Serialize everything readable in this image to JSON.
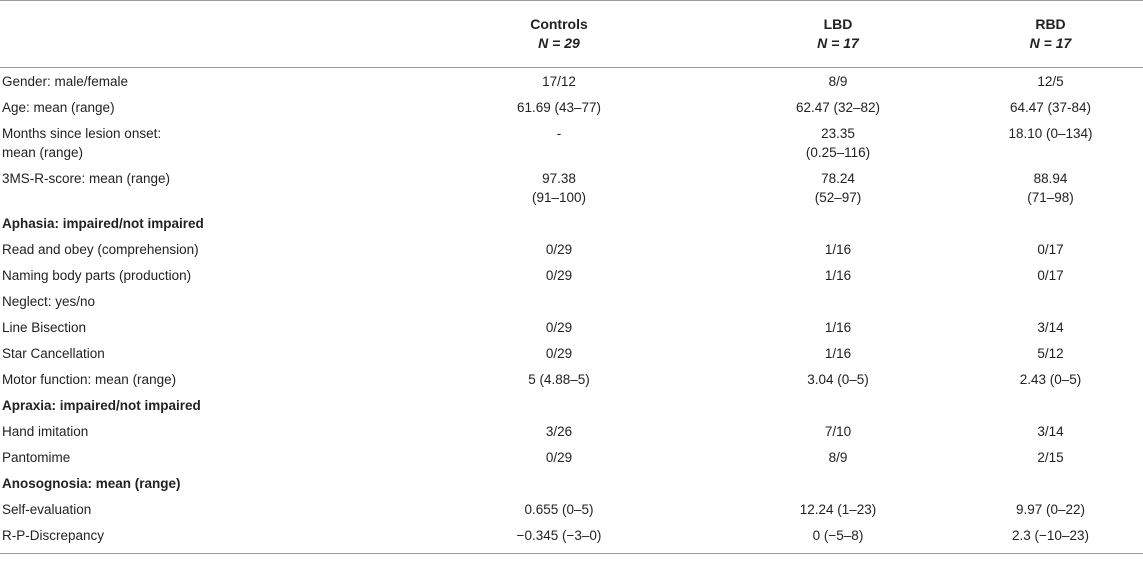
{
  "header": {
    "columns": [
      {
        "name": "Controls",
        "n": "N = 29"
      },
      {
        "name": "LBD",
        "n": "N = 17"
      },
      {
        "name": "RBD",
        "n": "N = 17"
      }
    ]
  },
  "rows": [
    {
      "label": "Gender: male/female",
      "values": [
        "17/12",
        "8/9",
        "12/5"
      ]
    },
    {
      "label": "Age: mean (range)",
      "values": [
        "61.69 (43–77)",
        "62.47 (32–82)",
        "64.47 (37-84)"
      ]
    },
    {
      "label_lines": [
        "Months since lesion onset:",
        "mean (range)"
      ],
      "values_lines": [
        [
          "-",
          ""
        ],
        [
          "23.35",
          "(0.25–116)"
        ],
        [
          "18.10 (0–134)",
          ""
        ]
      ]
    },
    {
      "label": "3MS-R-score: mean (range)",
      "values_lines": [
        [
          "97.38",
          "(91–100)"
        ],
        [
          "78.24",
          "(52–97)"
        ],
        [
          "88.94",
          "(71–98)"
        ]
      ]
    },
    {
      "label": "Aphasia: impaired/not impaired",
      "section": true
    },
    {
      "label": "Read and obey (comprehension)",
      "values": [
        "0/29",
        "1/16",
        "0/17"
      ]
    },
    {
      "label": "Naming body parts (production)",
      "values": [
        "0/29",
        "1/16",
        "0/17"
      ]
    },
    {
      "label": "Neglect: yes/no"
    },
    {
      "label": "Line Bisection",
      "values": [
        "0/29",
        "1/16",
        "3/14"
      ]
    },
    {
      "label": "Star Cancellation",
      "values": [
        "0/29",
        "1/16",
        "5/12"
      ]
    },
    {
      "label": "Motor function: mean (range)",
      "values": [
        "5 (4.88–5)",
        "3.04 (0–5)",
        "2.43 (0–5)"
      ]
    },
    {
      "label": "Apraxia: impaired/not impaired",
      "section": true
    },
    {
      "label": "Hand imitation",
      "values": [
        "3/26",
        "7/10",
        "3/14"
      ]
    },
    {
      "label": "Pantomime",
      "values": [
        "0/29",
        "8/9",
        "2/15"
      ]
    },
    {
      "label": "Anosognosia: mean (range)",
      "section": true
    },
    {
      "label": "Self-evaluation",
      "values": [
        "0.655 (0–5)",
        "12.24 (1–23)",
        "9.97 (0–22)"
      ]
    },
    {
      "label": "R-P-Discrepancy",
      "values": [
        "−0.345 (−3–0)",
        "0 (−5–8)",
        "2.3 (−10–23)"
      ]
    }
  ]
}
